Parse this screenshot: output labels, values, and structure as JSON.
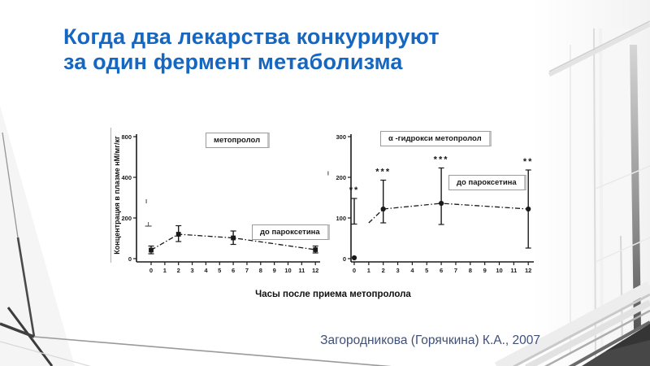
{
  "slide": {
    "title_lines": [
      "Когда два лекарства конкурируют",
      "за один фермент метаболизма"
    ],
    "citation": "Загородникова (Горячкина) К.А., 2007"
  },
  "colors": {
    "title": "#1567c1",
    "citation": "#3f5078",
    "ink": "#1a1a1a"
  },
  "chart_data": [
    {
      "type": "line",
      "title": "метопролол",
      "annotation": "до пароксетина",
      "ylabel": "Концентрация в плазме нМ/мг/кг",
      "xlabel": "Часы после приема метопролола",
      "x_ticks": [
        0,
        1,
        2,
        3,
        4,
        5,
        6,
        7,
        8,
        9,
        10,
        11,
        12
      ],
      "y_ticks": [
        0,
        200,
        400,
        800
      ],
      "xlim": [
        0,
        12
      ],
      "ylim": [
        0,
        800
      ],
      "grid": false,
      "legend": false,
      "series": [
        {
          "name": "до пароксетина",
          "marker": "square",
          "x": [
            0,
            2,
            6,
            12
          ],
          "y": [
            42,
            120,
            102,
            44
          ],
          "err_low": [
            24,
            84,
            70,
            28
          ],
          "err_high": [
            62,
            162,
            136,
            62
          ],
          "line_x": [
            0,
            2,
            6,
            12
          ],
          "line_y": [
            42,
            120,
            102,
            44
          ]
        }
      ],
      "stray_marks": [
        {
          "x": -0.2,
          "v": 160,
          "shape": "tbar"
        },
        {
          "x": -0.35,
          "v": 292,
          "shape": "tick"
        }
      ]
    },
    {
      "type": "line",
      "title": "α -гидрокси метопролол",
      "annotation": "до пароксетина",
      "x_ticks": [
        0,
        1,
        2,
        3,
        4,
        5,
        6,
        7,
        8,
        9,
        10,
        11,
        12
      ],
      "y_ticks": [
        0,
        100,
        200,
        300
      ],
      "xlim": [
        0,
        12
      ],
      "ylim": [
        0,
        300
      ],
      "grid": false,
      "legend": false,
      "series": [
        {
          "name": "до пароксетина",
          "marker": "circle",
          "x": [
            0,
            2,
            6,
            12
          ],
          "y": [
            2,
            122,
            136,
            122
          ],
          "err_low": [
            85,
            88,
            84,
            26
          ],
          "err_high": [
            148,
            193,
            223,
            218
          ],
          "line_x": [
            1,
            2,
            6,
            12
          ],
          "line_y": [
            88,
            122,
            136,
            122
          ]
        }
      ],
      "significance": [
        {
          "x": 0,
          "label": "**"
        },
        {
          "x": 2,
          "label": "***"
        },
        {
          "x": 6,
          "label": "***"
        },
        {
          "x": 12,
          "label": "**"
        }
      ],
      "stray_marks": [
        {
          "x": -1.8,
          "v": 215,
          "shape": "tick"
        }
      ]
    }
  ]
}
